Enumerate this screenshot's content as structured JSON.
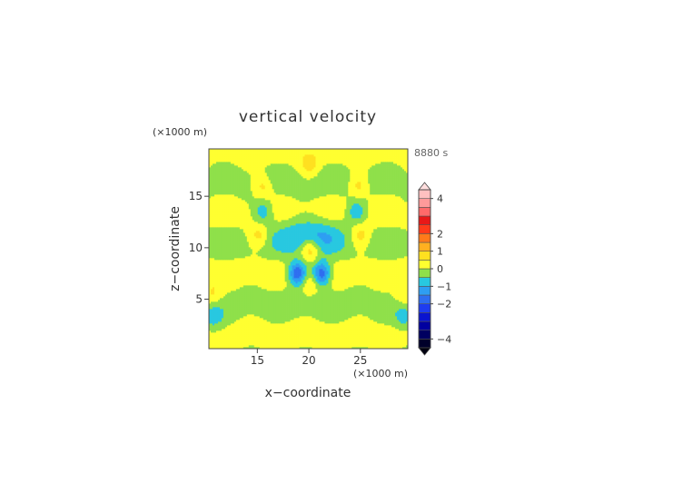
{
  "chart_data": {
    "type": "heatmap",
    "title": "vertical velocity",
    "xlabel": "x−coordinate",
    "ylabel": "z−coordinate",
    "x_unit": "(×1000 m)",
    "y_unit": "(×1000 m)",
    "time_label": "8880 s",
    "xlim": [
      10.3,
      29.6
    ],
    "ylim": [
      0.2,
      19.6
    ],
    "x_ticks": [
      15,
      20,
      25
    ],
    "y_ticks": [
      5,
      10,
      15
    ],
    "colorbar": {
      "levels": [
        -4.5,
        -4.0,
        -3.5,
        -3.0,
        -2.5,
        -2.0,
        -1.5,
        -1.0,
        -0.5,
        0.0,
        0.5,
        1.0,
        1.5,
        2.0,
        2.5,
        3.0,
        3.5,
        4.0,
        4.5
      ],
      "colors": [
        "#00002a",
        "#000060",
        "#0000a0",
        "#0a14d0",
        "#1e3cf0",
        "#2e6ef0",
        "#2e9ef2",
        "#28c8e0",
        "#8fe04a",
        "#ffff30",
        "#ffe020",
        "#ffb020",
        "#ff7a1a",
        "#ff3a1a",
        "#e81818",
        "#ff6a6a",
        "#ff9a9a",
        "#ffc0c0"
      ],
      "tick_values": [
        4,
        2,
        1,
        0,
        -1,
        -2,
        -4
      ],
      "tick_labels": [
        "4",
        "2",
        "1",
        "0",
        "−1",
        "−2",
        "−4"
      ]
    },
    "features": [
      {
        "type": "downdraft",
        "x": 18.9,
        "z": 7.5,
        "w": -2.2
      },
      {
        "type": "downdraft",
        "x": 21.2,
        "z": 7.5,
        "w": -2.2
      },
      {
        "type": "updraft",
        "x": 20.1,
        "z": 9.9,
        "w": 1.2
      },
      {
        "type": "updraft",
        "x": 20.1,
        "z": 6.6,
        "w": 0.8
      },
      {
        "type": "downdraft",
        "x": 15.6,
        "z": 13.5,
        "w": -1.0
      },
      {
        "type": "downdraft",
        "x": 24.6,
        "z": 13.5,
        "w": -1.0
      },
      {
        "type": "updraft",
        "x": 15.2,
        "z": 11.2,
        "w": 0.8
      },
      {
        "type": "updraft",
        "x": 25.0,
        "z": 11.2,
        "w": 0.8
      },
      {
        "type": "updraft",
        "x": 15.5,
        "z": 16.0,
        "w": 0.8
      },
      {
        "type": "updraft",
        "x": 24.8,
        "z": 16.0,
        "w": 0.8
      },
      {
        "type": "updraft",
        "x": 20.1,
        "z": 17.8,
        "w": 0.6
      },
      {
        "type": "downdraft",
        "x": 10.7,
        "z": 3.3,
        "w": -0.8
      },
      {
        "type": "downdraft",
        "x": 29.3,
        "z": 3.3,
        "w": -0.8
      },
      {
        "type": "updraft",
        "x": 10.6,
        "z": 5.5,
        "w": 0.6
      },
      {
        "type": "updraft",
        "x": 29.3,
        "z": 5.5,
        "w": 0.6
      }
    ]
  }
}
